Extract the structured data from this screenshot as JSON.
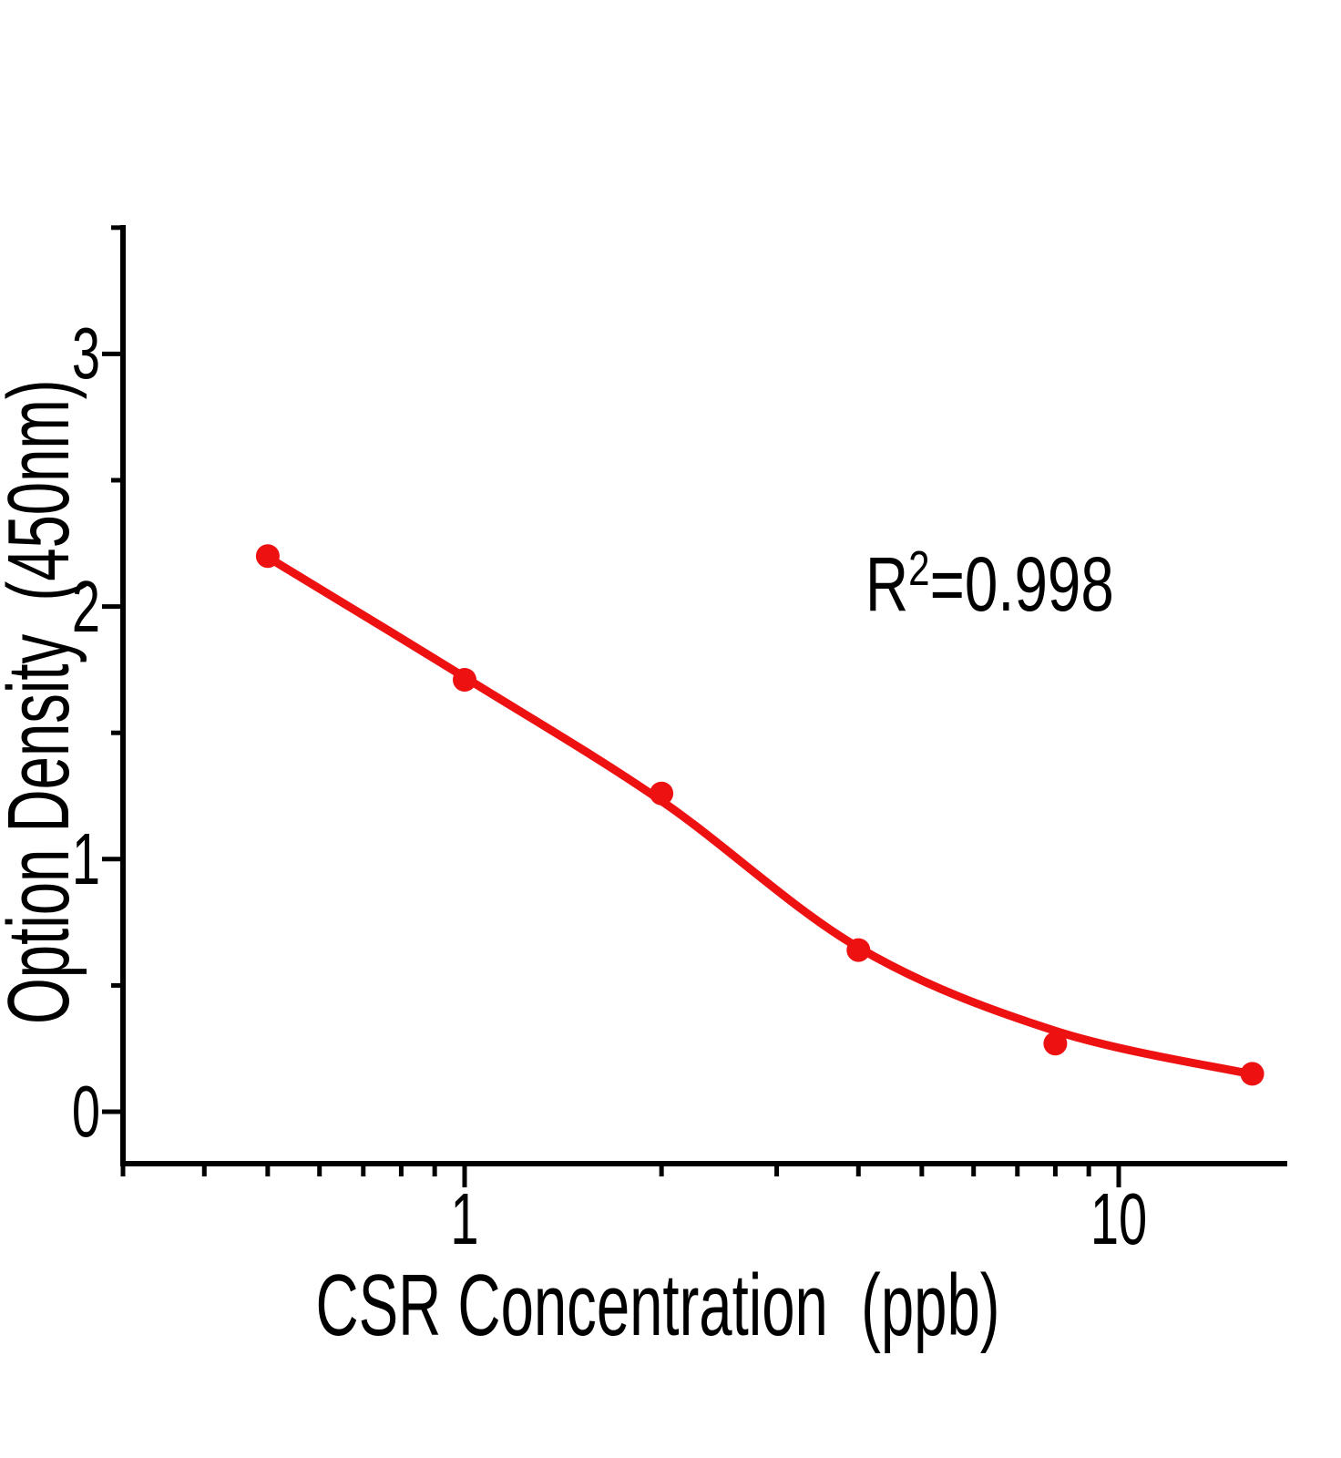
{
  "figure": {
    "background": "#ffffff",
    "annotation": {
      "base": "R",
      "exponent": "2",
      "value": "=0.998"
    },
    "x_axis": {
      "label": "CSR Concentration  (ppb)",
      "scale": "log",
      "range": [
        0.3,
        18
      ],
      "major_ticks": [
        {
          "value": 1,
          "label": "1"
        },
        {
          "value": 10,
          "label": "10"
        }
      ],
      "minor_ticks": [
        0.3,
        0.4,
        0.5,
        0.6,
        0.7,
        0.8,
        0.9,
        2,
        3,
        4,
        5,
        6,
        7,
        8,
        9
      ]
    },
    "y_axis": {
      "label": "Option Density  (450nm)",
      "scale": "linear",
      "range": [
        -0.2,
        3.5
      ],
      "major_ticks": [
        {
          "value": 0,
          "label": "0"
        },
        {
          "value": 1,
          "label": "1"
        },
        {
          "value": 2,
          "label": "2"
        },
        {
          "value": 3,
          "label": "3"
        }
      ],
      "minor_ticks": [
        0.5,
        1.5,
        2.5,
        3.5
      ]
    },
    "colors": {
      "series": "#ee1111",
      "axis": "#000000",
      "text": "#000000"
    }
  },
  "chart_data": {
    "type": "scatter",
    "title": "",
    "xlabel": "CSR Concentration (ppb)",
    "ylabel": "Option Density (450nm)",
    "x_scale": "log",
    "xlim": [
      0.3,
      18
    ],
    "ylim": [
      -0.2,
      3.5
    ],
    "x": [
      0.5,
      1,
      2,
      4,
      8,
      16
    ],
    "y": [
      2.2,
      1.71,
      1.26,
      0.64,
      0.27,
      0.15
    ],
    "fit_curve": {
      "x": [
        0.5,
        1,
        2,
        4,
        8,
        16
      ],
      "y": [
        2.195,
        1.72,
        1.23,
        0.65,
        0.32,
        0.148
      ]
    },
    "r_squared": 0.998,
    "grid": false,
    "legend": false
  }
}
